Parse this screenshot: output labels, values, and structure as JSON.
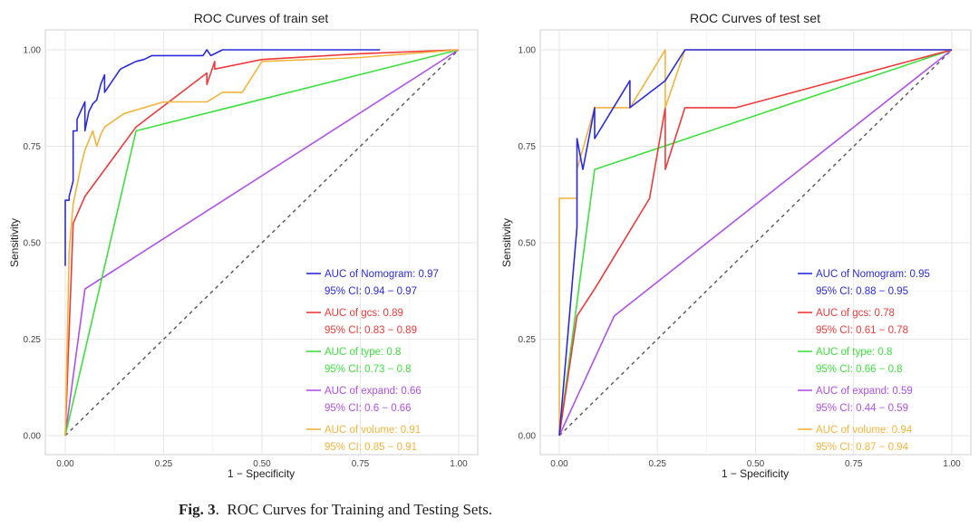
{
  "caption": {
    "label": "Fig. 3",
    "text": "ROC Curves for Training and Testing Sets."
  },
  "colors": {
    "nomogram": "#2b2bdc",
    "gcs": "#ee3a3a",
    "type": "#3ee03e",
    "expand": "#b050e8",
    "volume": "#f3b43c",
    "diagonal": "#555555",
    "grid": "#e6e6e6"
  },
  "chart_data": [
    {
      "type": "line",
      "title": "ROC Curves of train set",
      "xlabel": "1 − Specificity",
      "ylabel": "Sensitivity",
      "xlim": [
        0,
        1
      ],
      "ylim": [
        0,
        1
      ],
      "xticks": [
        "0.00",
        "0.25",
        "0.50",
        "0.75",
        "1.00"
      ],
      "yticks": [
        "0.00",
        "0.25",
        "0.50",
        "0.75",
        "1.00"
      ],
      "grid": true,
      "legend_position": "bottom-right",
      "legend": [
        {
          "line1": "AUC of Nomogram: 0.97",
          "line2": "95% CI: 0.94 − 0.97",
          "color_key": "nomogram"
        },
        {
          "line1": "AUC of gcs: 0.89",
          "line2": "95% CI: 0.83 − 0.89",
          "color_key": "gcs"
        },
        {
          "line1": "AUC of type: 0.8",
          "line2": "95% CI: 0.73 − 0.8",
          "color_key": "type"
        },
        {
          "line1": "AUC of expand: 0.66",
          "line2": "95% CI: 0.6 − 0.66",
          "color_key": "expand"
        },
        {
          "line1": "AUC of volume: 0.91",
          "line2": "95% CI: 0.85 − 0.91",
          "color_key": "volume"
        }
      ],
      "series": [
        {
          "color_key": "diagonal",
          "dashed": true,
          "points": [
            [
              0,
              0
            ],
            [
              1,
              1
            ]
          ]
        },
        {
          "color_key": "expand",
          "points": [
            [
              0,
              0
            ],
            [
              0.05,
              0.38
            ],
            [
              1,
              1
            ]
          ]
        },
        {
          "color_key": "type",
          "points": [
            [
              0,
              0
            ],
            [
              0.18,
              0.79
            ],
            [
              1,
              1
            ]
          ]
        },
        {
          "color_key": "gcs",
          "points": [
            [
              0,
              0
            ],
            [
              0.02,
              0.55
            ],
            [
              0.05,
              0.62
            ],
            [
              0.18,
              0.8
            ],
            [
              0.36,
              0.94
            ],
            [
              0.36,
              0.91
            ],
            [
              0.38,
              0.97
            ],
            [
              0.38,
              0.95
            ],
            [
              0.5,
              0.975
            ],
            [
              0.75,
              0.99
            ],
            [
              1,
              1
            ]
          ]
        },
        {
          "color_key": "volume",
          "points": [
            [
              0,
              0
            ],
            [
              0.01,
              0.48
            ],
            [
              0.02,
              0.6
            ],
            [
              0.04,
              0.7
            ],
            [
              0.05,
              0.74
            ],
            [
              0.07,
              0.79
            ],
            [
              0.08,
              0.75
            ],
            [
              0.09,
              0.78
            ],
            [
              0.1,
              0.8
            ],
            [
              0.15,
              0.835
            ],
            [
              0.25,
              0.865
            ],
            [
              0.36,
              0.865
            ],
            [
              0.4,
              0.89
            ],
            [
              0.45,
              0.89
            ],
            [
              0.5,
              0.97
            ],
            [
              0.75,
              0.98
            ],
            [
              1,
              1
            ]
          ]
        },
        {
          "color_key": "nomogram",
          "points": [
            [
              0,
              0.44
            ],
            [
              0,
              0.61
            ],
            [
              0.01,
              0.61
            ],
            [
              0.01,
              0.62
            ],
            [
              0.02,
              0.66
            ],
            [
              0.02,
              0.79
            ],
            [
              0.03,
              0.79
            ],
            [
              0.03,
              0.82
            ],
            [
              0.05,
              0.865
            ],
            [
              0.05,
              0.79
            ],
            [
              0.06,
              0.84
            ],
            [
              0.07,
              0.86
            ],
            [
              0.08,
              0.87
            ],
            [
              0.09,
              0.91
            ],
            [
              0.1,
              0.935
            ],
            [
              0.1,
              0.89
            ],
            [
              0.12,
              0.92
            ],
            [
              0.14,
              0.95
            ],
            [
              0.16,
              0.96
            ],
            [
              0.18,
              0.97
            ],
            [
              0.2,
              0.975
            ],
            [
              0.22,
              0.985
            ],
            [
              0.25,
              0.985
            ],
            [
              0.35,
              0.985
            ],
            [
              0.36,
              1.0
            ],
            [
              0.37,
              0.985
            ],
            [
              0.4,
              1.0
            ],
            [
              0.5,
              1.0
            ],
            [
              0.8,
              1.0
            ]
          ]
        }
      ]
    },
    {
      "type": "line",
      "title": "ROC Curves of test set",
      "xlabel": "1 − Specificity",
      "ylabel": "Sensitivity",
      "xlim": [
        0,
        1
      ],
      "ylim": [
        0,
        1
      ],
      "xticks": [
        "0.00",
        "0.25",
        "0.50",
        "0.75",
        "1.00"
      ],
      "yticks": [
        "0.00",
        "0.25",
        "0.50",
        "0.75",
        "1.00"
      ],
      "grid": true,
      "legend_position": "bottom-right",
      "legend": [
        {
          "line1": "AUC of Nomogram: 0.95",
          "line2": "95% CI: 0.88 − 0.95",
          "color_key": "nomogram"
        },
        {
          "line1": "AUC of gcs: 0.78",
          "line2": "95% CI: 0.61 − 0.78",
          "color_key": "gcs"
        },
        {
          "line1": "AUC of type: 0.8",
          "line2": "95% CI: 0.66 − 0.8",
          "color_key": "type"
        },
        {
          "line1": "AUC of expand: 0.59",
          "line2": "95% CI: 0.44 − 0.59",
          "color_key": "expand"
        },
        {
          "line1": "AUC of volume: 0.94",
          "line2": "95% CI: 0.87 − 0.94",
          "color_key": "volume"
        }
      ],
      "series": [
        {
          "color_key": "diagonal",
          "dashed": true,
          "points": [
            [
              0,
              0
            ],
            [
              1,
              1
            ]
          ]
        },
        {
          "color_key": "expand",
          "points": [
            [
              0,
              0
            ],
            [
              0.045,
              0.1
            ],
            [
              0.14,
              0.31
            ],
            [
              1,
              1
            ]
          ]
        },
        {
          "color_key": "type",
          "points": [
            [
              0,
              0
            ],
            [
              0.09,
              0.69
            ],
            [
              1,
              1
            ]
          ]
        },
        {
          "color_key": "gcs",
          "points": [
            [
              0,
              0
            ],
            [
              0.045,
              0.31
            ],
            [
              0.09,
              0.38
            ],
            [
              0.23,
              0.615
            ],
            [
              0.27,
              0.85
            ],
            [
              0.27,
              0.69
            ],
            [
              0.32,
              0.85
            ],
            [
              0.45,
              0.85
            ],
            [
              1,
              1
            ]
          ]
        },
        {
          "color_key": "volume",
          "points": [
            [
              0,
              0
            ],
            [
              0,
              0.615
            ],
            [
              0.045,
              0.615
            ],
            [
              0.045,
              0.69
            ],
            [
              0.09,
              0.85
            ],
            [
              0.14,
              0.85
            ],
            [
              0.18,
              0.85
            ],
            [
              0.27,
              1.0
            ],
            [
              0.27,
              0.85
            ],
            [
              0.32,
              1.0
            ],
            [
              1,
              1
            ]
          ]
        },
        {
          "color_key": "nomogram",
          "points": [
            [
              0,
              0
            ],
            [
              0.045,
              0.54
            ],
            [
              0.045,
              0.77
            ],
            [
              0.06,
              0.69
            ],
            [
              0.09,
              0.85
            ],
            [
              0.09,
              0.77
            ],
            [
              0.18,
              0.92
            ],
            [
              0.18,
              0.85
            ],
            [
              0.27,
              0.92
            ],
            [
              0.32,
              1.0
            ],
            [
              0.45,
              1.0
            ],
            [
              1,
              1
            ]
          ]
        }
      ]
    }
  ]
}
